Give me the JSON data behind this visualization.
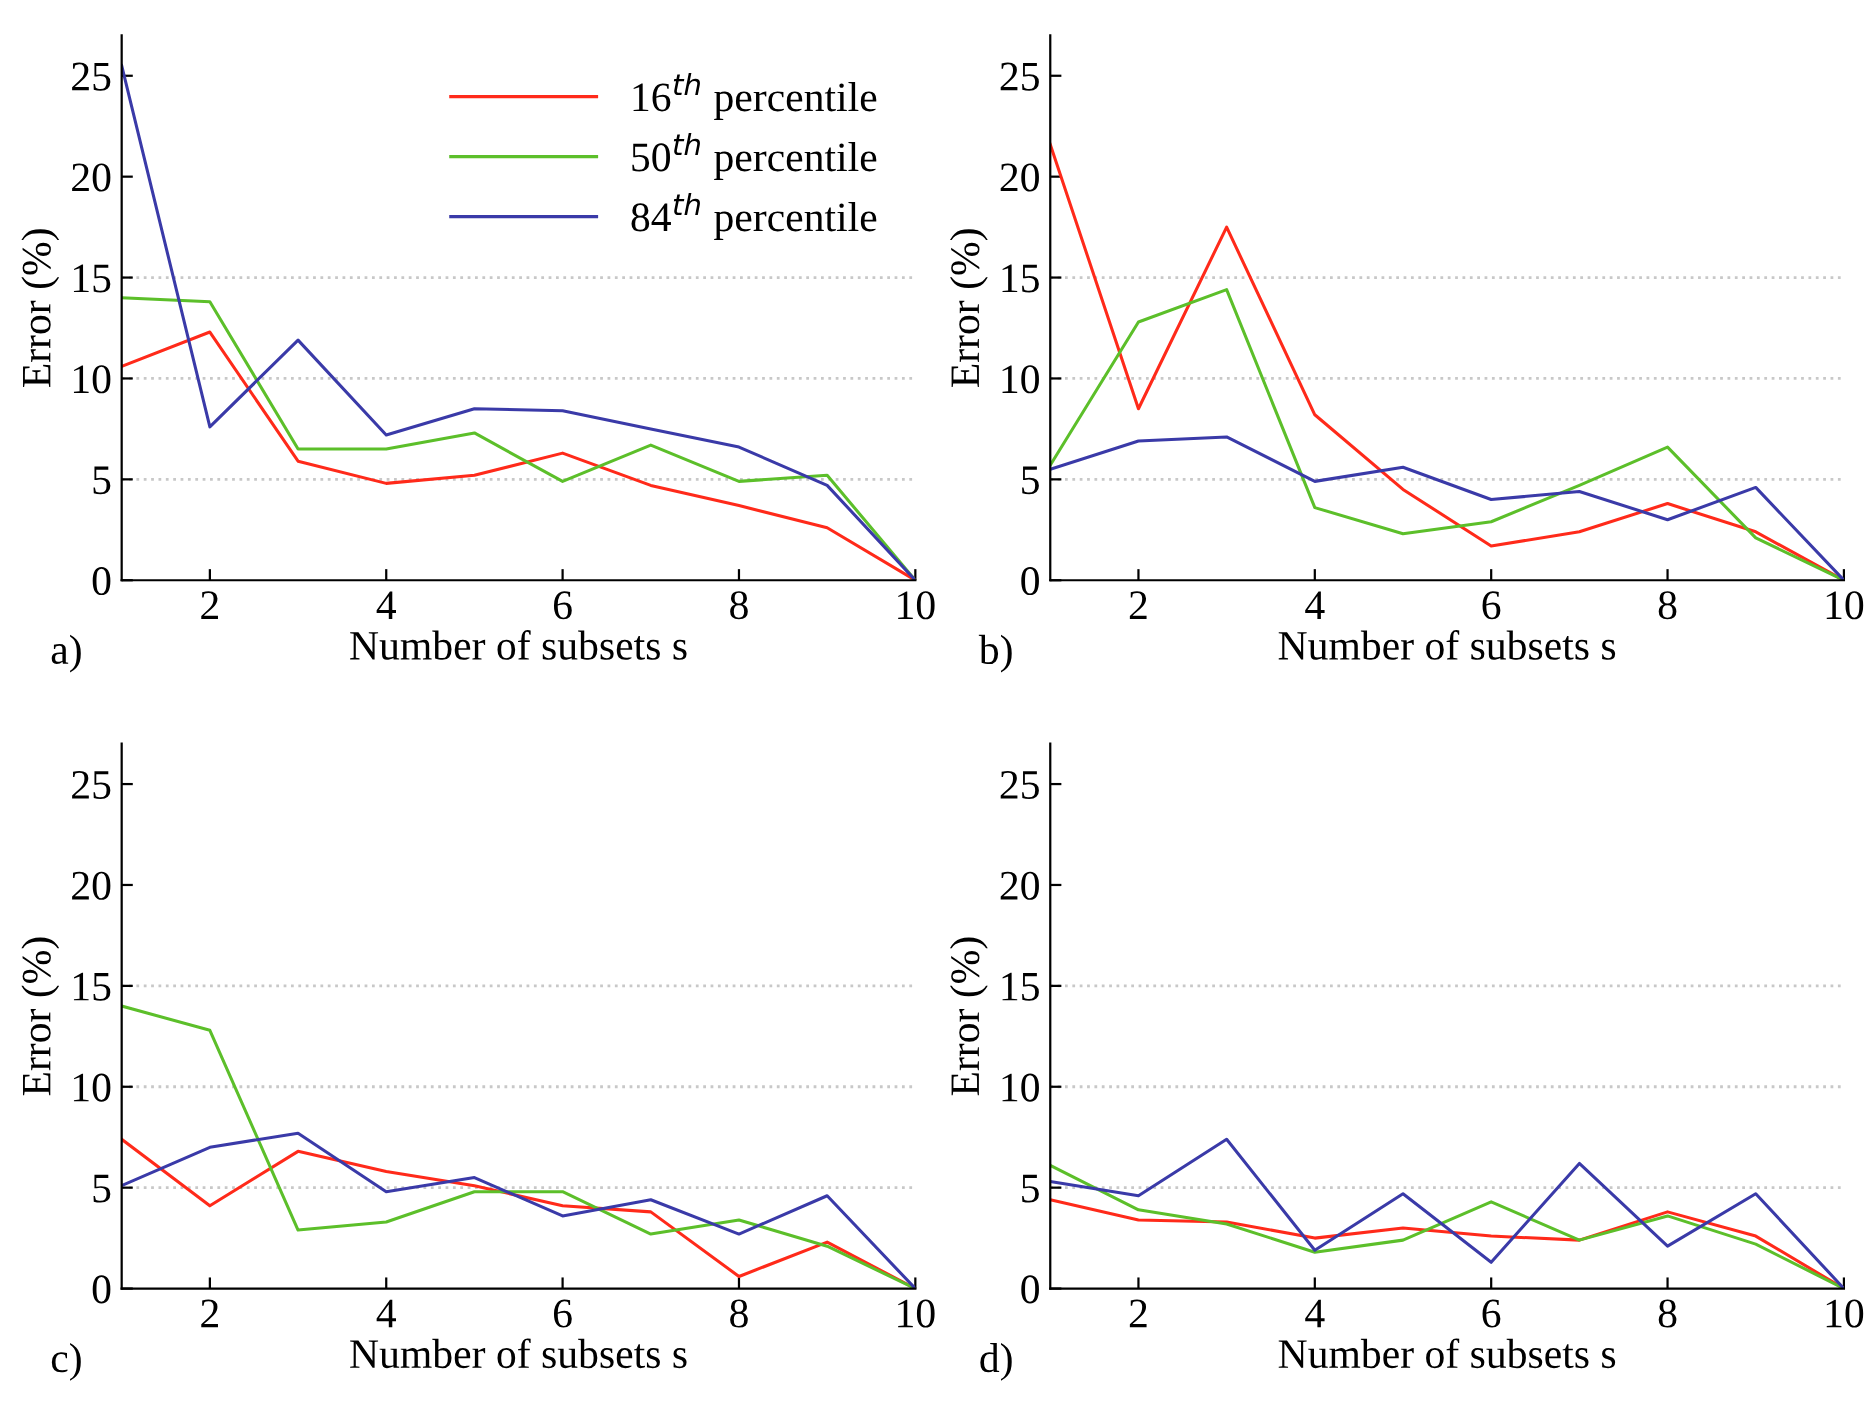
{
  "chart_data": [
    {
      "type": "line",
      "xlabel": "Number of subsets s",
      "ylabel": "Error (%)",
      "annotations": [
        "a)"
      ],
      "x": [
        1,
        2,
        3,
        4,
        5,
        6,
        7,
        8,
        9,
        10
      ],
      "xlim": [
        1,
        10
      ],
      "xticks": [
        2,
        4,
        6,
        8,
        10
      ],
      "ylim": [
        0,
        27
      ],
      "yticks": [
        0,
        5,
        10,
        15,
        20,
        25
      ],
      "legend": "top right",
      "grid": false,
      "ref_lines": [
        {
          "axis": "y",
          "value": 5,
          "color": "#c8c8c8",
          "line_style": "dotted"
        },
        {
          "axis": "y",
          "value": 10,
          "color": "#c8c8c8",
          "line_style": "dotted"
        },
        {
          "axis": "y",
          "value": 15,
          "color": "#c8c8c8",
          "line_style": "dotted"
        }
      ],
      "series": [
        {
          "name": "16$^{th}$ percentile",
          "color": "#ff2a1a",
          "values": [
            10.6,
            12.3,
            5.9,
            4.8,
            5.2,
            6.3,
            4.7,
            3.7,
            2.6,
            0
          ]
        },
        {
          "name": "50$^{th}$ percentile",
          "color": "#5cbf2a",
          "values": [
            14.0,
            13.8,
            6.5,
            6.5,
            7.3,
            4.9,
            6.7,
            4.9,
            5.2,
            0
          ]
        },
        {
          "name": "84$^{th}$ percentile",
          "color": "#3a3aa8",
          "values": [
            25.5,
            7.6,
            11.9,
            7.2,
            8.5,
            8.4,
            7.5,
            6.6,
            4.7,
            0
          ]
        }
      ]
    },
    {
      "type": "line",
      "xlabel": "Number of subsets s",
      "ylabel": "Error (%)",
      "annotations": [
        "b)"
      ],
      "x": [
        1,
        2,
        3,
        4,
        5,
        6,
        7,
        8,
        9,
        10
      ],
      "xlim": [
        1,
        10
      ],
      "xticks": [
        2,
        4,
        6,
        8,
        10
      ],
      "ylim": [
        0,
        27
      ],
      "yticks": [
        0,
        5,
        10,
        15,
        20,
        25
      ],
      "grid": false,
      "ref_lines": [
        {
          "axis": "y",
          "value": 5,
          "color": "#c8c8c8",
          "line_style": "dotted"
        },
        {
          "axis": "y",
          "value": 10,
          "color": "#c8c8c8",
          "line_style": "dotted"
        },
        {
          "axis": "y",
          "value": 15,
          "color": "#c8c8c8",
          "line_style": "dotted"
        }
      ],
      "series": [
        {
          "color": "#ff2a1a",
          "values": [
            21.6,
            8.5,
            17.5,
            8.2,
            4.5,
            1.7,
            2.4,
            3.8,
            2.4,
            0
          ]
        },
        {
          "color": "#5cbf2a",
          "values": [
            5.7,
            12.8,
            14.4,
            3.6,
            2.3,
            2.9,
            4.7,
            6.6,
            2.1,
            0
          ]
        },
        {
          "color": "#3a3aa8",
          "values": [
            5.5,
            6.9,
            7.1,
            4.9,
            5.6,
            4.0,
            4.4,
            3.0,
            4.6,
            0
          ]
        }
      ]
    },
    {
      "type": "line",
      "xlabel": "Number of subsets s",
      "ylabel": "Error (%)",
      "annotations": [
        "c)"
      ],
      "x": [
        1,
        2,
        3,
        4,
        5,
        6,
        7,
        8,
        9,
        10
      ],
      "xlim": [
        1,
        10
      ],
      "xticks": [
        2,
        4,
        6,
        8,
        10
      ],
      "ylim": [
        0,
        27
      ],
      "yticks": [
        0,
        5,
        10,
        15,
        20,
        25
      ],
      "grid": false,
      "ref_lines": [
        {
          "axis": "y",
          "value": 5,
          "color": "#c8c8c8",
          "line_style": "dotted"
        },
        {
          "axis": "y",
          "value": 10,
          "color": "#c8c8c8",
          "line_style": "dotted"
        },
        {
          "axis": "y",
          "value": 15,
          "color": "#c8c8c8",
          "line_style": "dotted"
        }
      ],
      "series": [
        {
          "color": "#ff2a1a",
          "values": [
            7.4,
            4.1,
            6.8,
            5.8,
            5.1,
            4.1,
            3.8,
            0.6,
            2.3,
            0
          ]
        },
        {
          "color": "#5cbf2a",
          "values": [
            14.0,
            12.8,
            2.9,
            3.3,
            4.8,
            4.8,
            2.7,
            3.4,
            2.1,
            0
          ]
        },
        {
          "color": "#3a3aa8",
          "values": [
            5.1,
            7.0,
            7.7,
            4.8,
            5.5,
            3.6,
            4.4,
            2.7,
            4.6,
            0
          ]
        }
      ]
    },
    {
      "type": "line",
      "xlabel": "Number of subsets s",
      "ylabel": "Error (%)",
      "annotations": [
        "d)"
      ],
      "x": [
        1,
        2,
        3,
        4,
        5,
        6,
        7,
        8,
        9,
        10
      ],
      "xlim": [
        1,
        10
      ],
      "xticks": [
        2,
        4,
        6,
        8,
        10
      ],
      "ylim": [
        0,
        27
      ],
      "yticks": [
        0,
        5,
        10,
        15,
        20,
        25
      ],
      "grid": false,
      "ref_lines": [
        {
          "axis": "y",
          "value": 5,
          "color": "#c8c8c8",
          "line_style": "dotted"
        },
        {
          "axis": "y",
          "value": 10,
          "color": "#c8c8c8",
          "line_style": "dotted"
        },
        {
          "axis": "y",
          "value": 15,
          "color": "#c8c8c8",
          "line_style": "dotted"
        }
      ],
      "series": [
        {
          "color": "#ff2a1a",
          "values": [
            4.4,
            3.4,
            3.3,
            2.5,
            3.0,
            2.6,
            2.4,
            3.8,
            2.6,
            0
          ]
        },
        {
          "color": "#5cbf2a",
          "values": [
            6.1,
            3.9,
            3.2,
            1.8,
            2.4,
            4.3,
            2.4,
            3.6,
            2.2,
            0
          ]
        },
        {
          "color": "#3a3aa8",
          "values": [
            5.3,
            4.6,
            7.4,
            1.9,
            4.7,
            1.3,
            6.2,
            2.1,
            4.7,
            0
          ]
        }
      ]
    }
  ]
}
